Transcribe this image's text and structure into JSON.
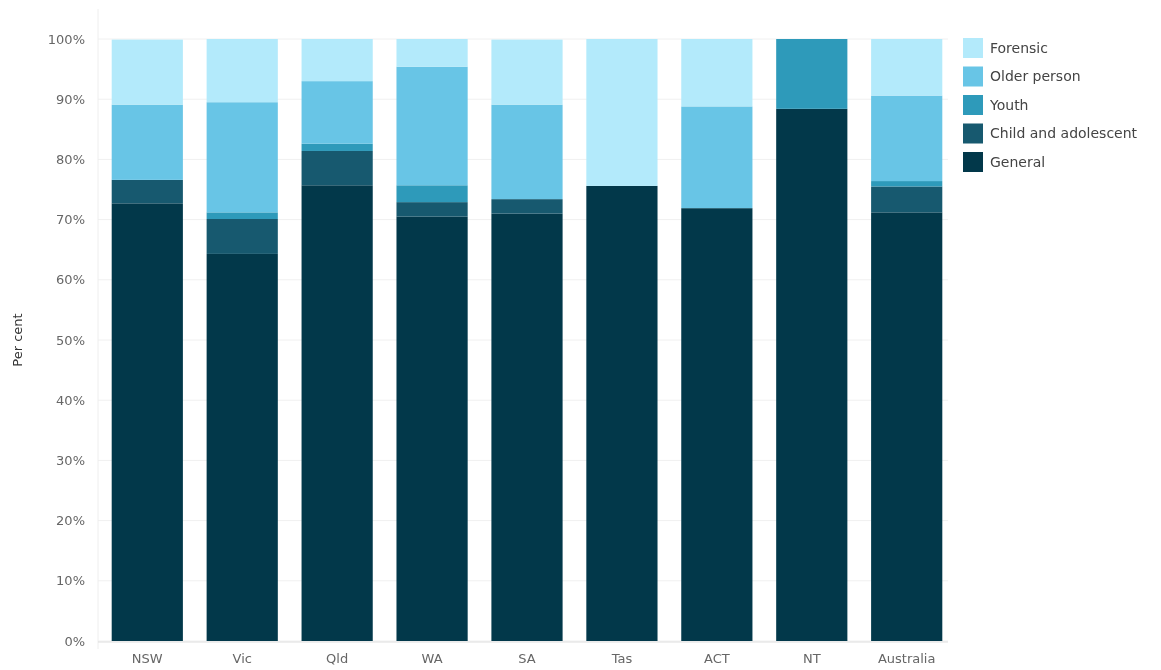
{
  "chart_data": {
    "type": "bar",
    "stacked": true,
    "ylabel": "Per cent",
    "categories": [
      "NSW",
      "Vic",
      "Qld",
      "WA",
      "SA",
      "Tas",
      "ACT",
      "NT",
      "Australia"
    ],
    "series": [
      {
        "name": "General",
        "color": "#02384a",
        "values": [
          72.7,
          64.3,
          75.7,
          70.5,
          71.0,
          75.6,
          71.9,
          88.4,
          71.2
        ]
      },
      {
        "name": "Child and adolescent",
        "color": "#17596f",
        "values": [
          3.9,
          5.8,
          5.7,
          2.4,
          2.4,
          0,
          0,
          0,
          4.3
        ]
      },
      {
        "name": "Youth",
        "color": "#2e9aba",
        "values": [
          null,
          1.1,
          1.2,
          2.8,
          null,
          0,
          0,
          11.6,
          0.9
        ]
      },
      {
        "name": "Older person",
        "color": "#68c5e6",
        "values": [
          12.5,
          18.3,
          10.4,
          19.7,
          15.7,
          0,
          16.9,
          0,
          14.2
        ]
      },
      {
        "name": "Forensic",
        "color": "#b3eafb",
        "values": [
          10.8,
          10.5,
          7.0,
          4.6,
          10.8,
          24.4,
          11.2,
          0,
          9.4
        ]
      }
    ],
    "ylim": [
      0,
      100
    ],
    "yticks": [
      {
        "value": 0,
        "label": "0%"
      },
      {
        "value": 10,
        "label": "10%"
      },
      {
        "value": 20,
        "label": "20%"
      },
      {
        "value": 30,
        "label": "30%"
      },
      {
        "value": 40,
        "label": "40%"
      },
      {
        "value": 50,
        "label": "50%"
      },
      {
        "value": 60,
        "label": "60%"
      },
      {
        "value": 70,
        "label": "70%"
      },
      {
        "value": 80,
        "label": "80%"
      },
      {
        "value": 90,
        "label": "90%"
      },
      {
        "value": 100,
        "label": "100%"
      }
    ],
    "grid": "y",
    "legend": "right"
  }
}
